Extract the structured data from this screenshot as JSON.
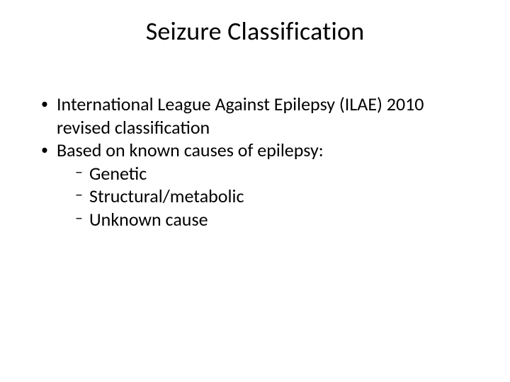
{
  "slide": {
    "title": "Seizure Classification",
    "title_fontsize": 36,
    "background_color": "#ffffff",
    "text_color": "#000000",
    "body_fontsize": 26,
    "bullets": [
      {
        "level": 1,
        "marker": "•",
        "text": "International League Against Epilepsy (ILAE) 2010 revised classification"
      },
      {
        "level": 1,
        "marker": "•",
        "text": "Based on known causes of epilepsy:"
      },
      {
        "level": 2,
        "marker": "–",
        "text": "Genetic"
      },
      {
        "level": 2,
        "marker": "–",
        "text": "Structural/metabolic"
      },
      {
        "level": 2,
        "marker": "–",
        "text": "Unknown cause"
      }
    ]
  }
}
